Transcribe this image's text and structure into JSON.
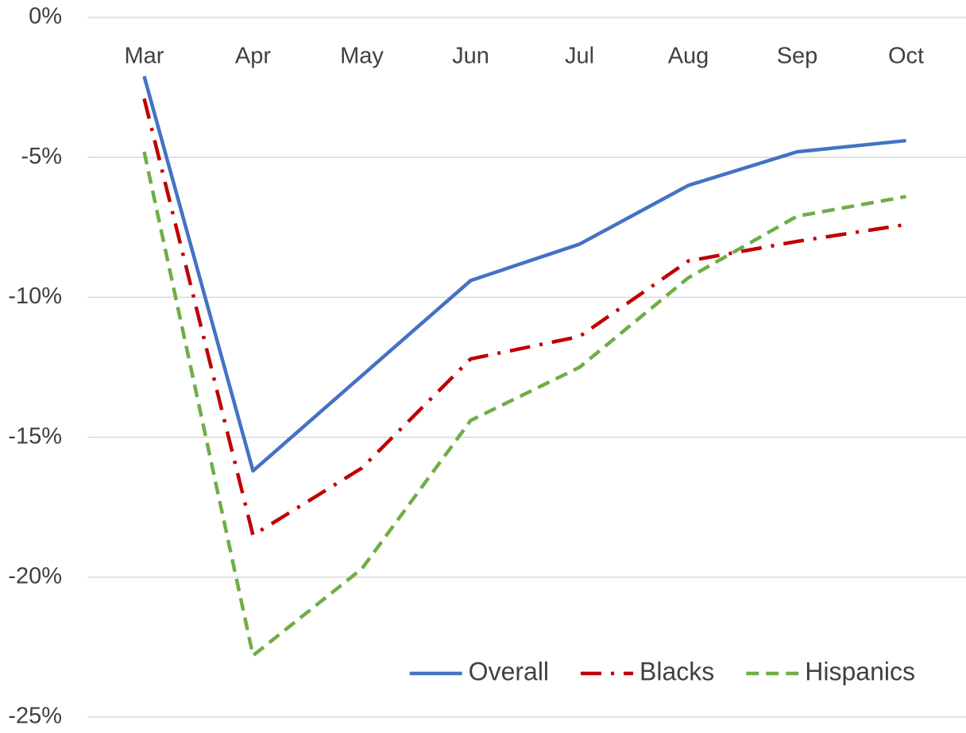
{
  "chart_data": {
    "type": "line",
    "categories": [
      "Mar",
      "Apr",
      "May",
      "Jun",
      "Jul",
      "Aug",
      "Sep",
      "Oct"
    ],
    "series": [
      {
        "name": "Overall",
        "color": "#4472c4",
        "dash": "solid",
        "values": [
          -2.1,
          -16.2,
          -12.8,
          -9.4,
          -8.1,
          -6.0,
          -4.8,
          -4.4
        ]
      },
      {
        "name": "Blacks",
        "color": "#c00000",
        "dash": "dashdot",
        "values": [
          -2.9,
          -18.5,
          -16.1,
          -12.2,
          -11.4,
          -8.7,
          -8.0,
          -7.4
        ]
      },
      {
        "name": "Hispanics",
        "color": "#70ad47",
        "dash": "dash",
        "values": [
          -4.8,
          -22.8,
          -19.7,
          -14.4,
          -12.5,
          -9.3,
          -7.1,
          -6.4
        ]
      }
    ],
    "ylim": [
      -25,
      0
    ],
    "yticks": [
      {
        "value": -25,
        "label": "-25%"
      },
      {
        "value": -20,
        "label": "-20%"
      },
      {
        "value": -15,
        "label": "-15%"
      },
      {
        "value": -10,
        "label": "-10%"
      },
      {
        "value": -5,
        "label": "-5%"
      },
      {
        "value": 0,
        "label": "0%"
      }
    ],
    "grid": true,
    "legend": "bottom-right"
  }
}
